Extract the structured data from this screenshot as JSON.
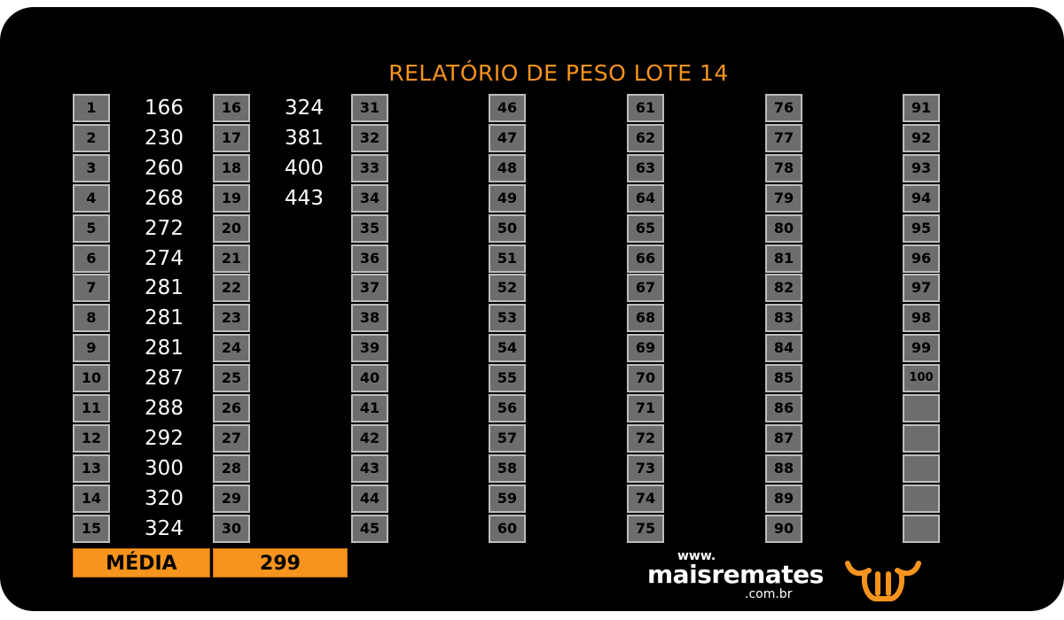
{
  "title": "RELATÓRIO DE PESO LOTE 14",
  "columns": [
    {
      "numbers": [
        "1",
        "2",
        "3",
        "4",
        "5",
        "6",
        "7",
        "8",
        "9",
        "10",
        "11",
        "12",
        "13",
        "14",
        "15"
      ],
      "values": [
        "166",
        "230",
        "260",
        "268",
        "272",
        "274",
        "281",
        "281",
        "281",
        "287",
        "288",
        "292",
        "300",
        "320",
        "324"
      ]
    },
    {
      "numbers": [
        "16",
        "17",
        "18",
        "19",
        "20",
        "21",
        "22",
        "23",
        "24",
        "25",
        "26",
        "27",
        "28",
        "29",
        "30"
      ],
      "values": [
        "324",
        "381",
        "400",
        "443",
        "",
        "",
        "",
        "",
        "",
        "",
        "",
        "",
        "",
        "",
        ""
      ]
    },
    {
      "numbers": [
        "31",
        "32",
        "33",
        "34",
        "35",
        "36",
        "37",
        "38",
        "39",
        "40",
        "41",
        "42",
        "43",
        "44",
        "45"
      ],
      "values": []
    },
    {
      "numbers": [
        "46",
        "47",
        "48",
        "49",
        "50",
        "51",
        "52",
        "53",
        "54",
        "55",
        "56",
        "57",
        "58",
        "59",
        "60"
      ],
      "values": []
    },
    {
      "numbers": [
        "61",
        "62",
        "63",
        "64",
        "65",
        "66",
        "67",
        "68",
        "69",
        "70",
        "71",
        "72",
        "73",
        "74",
        "75"
      ],
      "values": []
    },
    {
      "numbers": [
        "76",
        "77",
        "78",
        "79",
        "80",
        "81",
        "82",
        "83",
        "84",
        "85",
        "86",
        "87",
        "88",
        "89",
        "90"
      ],
      "values": []
    },
    {
      "numbers": [
        "91",
        "92",
        "93",
        "94",
        "95",
        "96",
        "97",
        "98",
        "99",
        "100",
        "",
        "",
        "",
        "",
        ""
      ],
      "values": []
    }
  ],
  "footer": {
    "media_label": "MÉDIA",
    "media_value": "299"
  },
  "logo": {
    "www": "www.",
    "name": "maisremates",
    "domain": ".com.br"
  },
  "colors": {
    "accent": "#f7941d",
    "cell": "#6d6d6d",
    "background": "#000000"
  },
  "icons": {
    "brand": "bull-head-icon"
  }
}
